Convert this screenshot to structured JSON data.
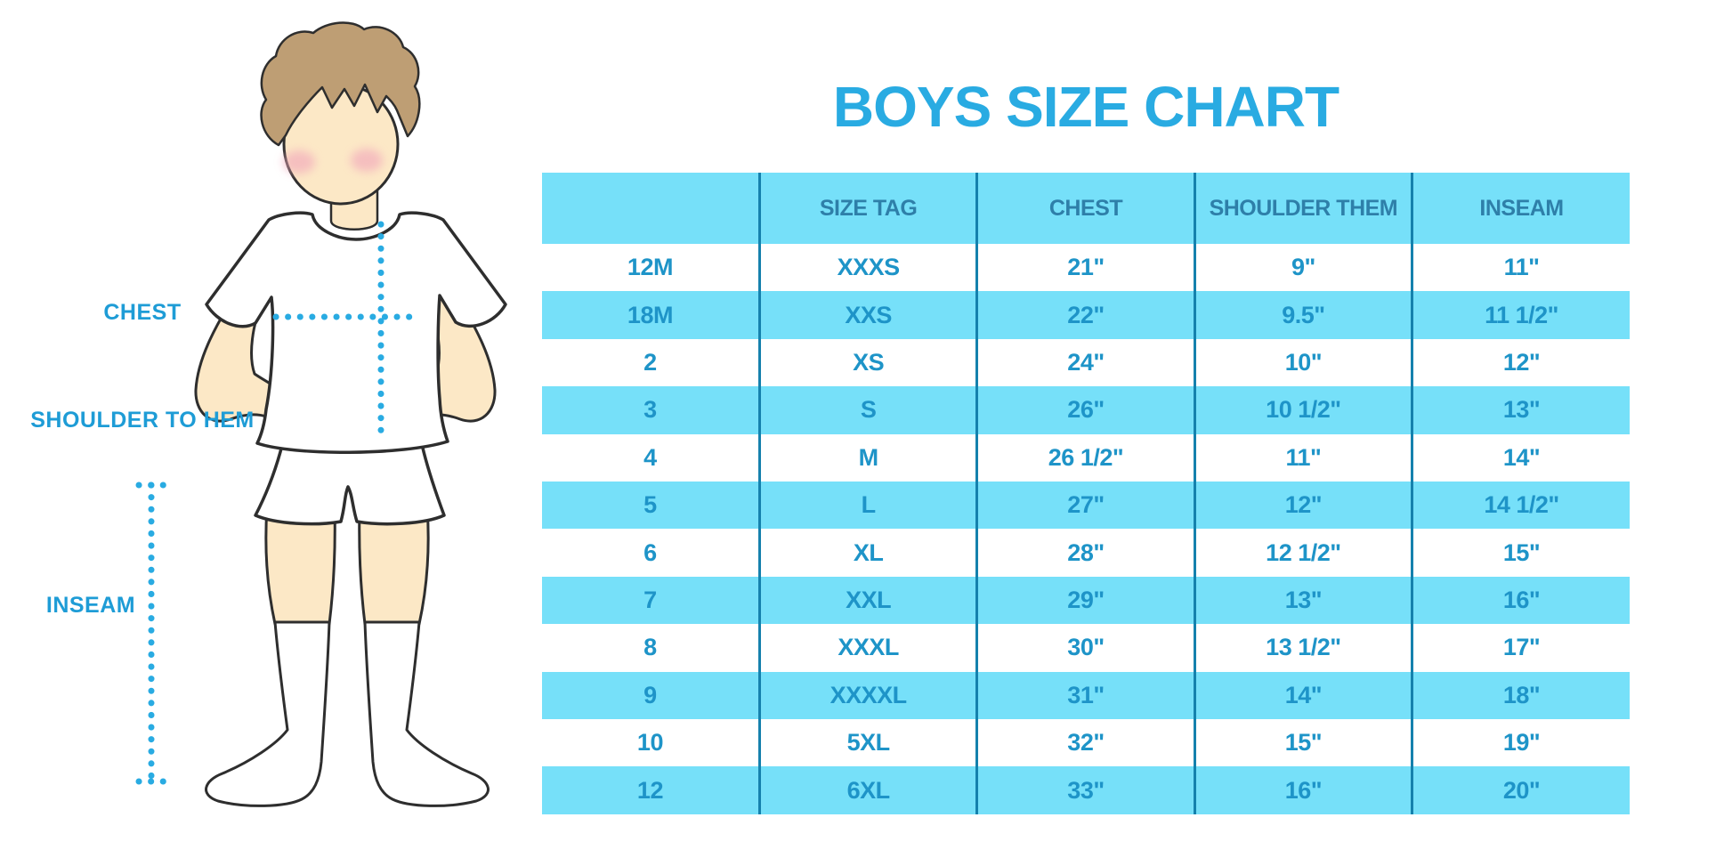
{
  "title": "BOYS SIZE CHART",
  "figure_labels": {
    "chest": "CHEST",
    "shoulder_to_hem": "SHOULDER TO HEM",
    "inseam": "INSEAM"
  },
  "chart_data": {
    "type": "table",
    "title": "BOYS SIZE CHART",
    "columns": [
      "",
      "SIZE TAG",
      "CHEST",
      "SHOULDER THEM",
      "INSEAM"
    ],
    "rows": [
      [
        "12M",
        "XXXS",
        "21\"",
        "9\"",
        "11\""
      ],
      [
        "18M",
        "XXS",
        "22\"",
        "9.5\"",
        "11 1/2\""
      ],
      [
        "2",
        "XS",
        "24\"",
        "10\"",
        "12\""
      ],
      [
        "3",
        "S",
        "26\"",
        "10 1/2\"",
        "13\""
      ],
      [
        "4",
        "M",
        "26 1/2\"",
        "11\"",
        "14\""
      ],
      [
        "5",
        "L",
        "27\"",
        "12\"",
        "14 1/2\""
      ],
      [
        "6",
        "XL",
        "28\"",
        "12 1/2\"",
        "15\""
      ],
      [
        "7",
        "XXL",
        "29\"",
        "13\"",
        "16\""
      ],
      [
        "8",
        "XXXL",
        "30\"",
        "13 1/2\"",
        "17\""
      ],
      [
        "9",
        "XXXXL",
        "31\"",
        "14\"",
        "18\""
      ],
      [
        "10",
        "5XL",
        "32\"",
        "15\"",
        "19\""
      ],
      [
        "12",
        "6XL",
        "33\"",
        "16\"",
        "20\""
      ]
    ],
    "row_striping": "header and even data rows cyan, odd data rows white",
    "legend_position": "none",
    "grid": "vertical column dividers only"
  },
  "colors": {
    "title_blue": "#29ABE2",
    "band_cyan": "#76E0F9",
    "header_text": "#2E7FA9",
    "cell_text": "#1E94C8",
    "divider": "#1581AD",
    "label_blue": "#1E9CD6",
    "dotted_blue": "#29ABE2",
    "skin": "#FCE8C6",
    "hair": "#BE9E74",
    "blush": "#F2A9BB",
    "outline": "#2e2e2e"
  }
}
